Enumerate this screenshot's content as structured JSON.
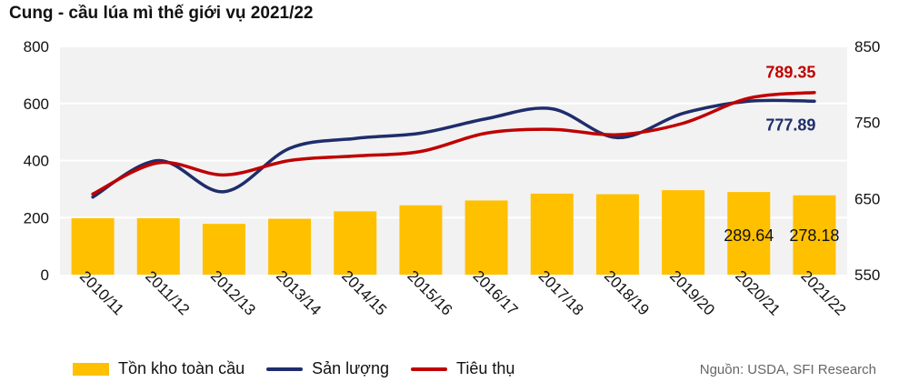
{
  "title": "Cung - cầu lúa mì thế giới vụ 2021/22",
  "source": "Nguồn: USDA, SFI Research",
  "colors": {
    "bar": "#FFC000",
    "production": "#1F2D6B",
    "consumption": "#C00000",
    "plot_bg": "#F2F2F2",
    "grid": "#FFFFFF"
  },
  "chart_data": {
    "type": "bar",
    "categories": [
      "2010/11",
      "2011/12",
      "2012/13",
      "2013/14",
      "2014/15",
      "2015/16",
      "2016/17",
      "2017/18",
      "2018/19",
      "2019/20",
      "2020/21",
      "2021/22"
    ],
    "y_left": {
      "lim": [
        0,
        800
      ],
      "ticks": [
        0,
        200,
        400,
        600,
        800
      ]
    },
    "y_right": {
      "lim": [
        550,
        850
      ],
      "ticks": [
        550,
        650,
        750,
        850
      ]
    },
    "grid": true,
    "legend_position": "bottom-left",
    "series": [
      {
        "name": "Tồn kho toàn cầu",
        "type": "bar",
        "axis": "left",
        "values": [
          198,
          198,
          178,
          196,
          222,
          243,
          260,
          284,
          282,
          296,
          289.64,
          278.18
        ]
      },
      {
        "name": "Sản lượng",
        "type": "line",
        "axis": "right",
        "values": [
          652,
          700,
          659,
          716,
          729,
          736,
          755,
          768,
          730,
          762,
          778,
          777.89
        ]
      },
      {
        "name": "Tiêu thụ",
        "type": "line",
        "axis": "right",
        "values": [
          656,
          697,
          681,
          700,
          706,
          712,
          736,
          741,
          734,
          749,
          782,
          789.35
        ]
      }
    ],
    "data_labels": [
      {
        "series": "Tồn kho toàn cầu",
        "index": 10,
        "text": "289.64"
      },
      {
        "series": "Tồn kho toàn cầu",
        "index": 11,
        "text": "278.18"
      },
      {
        "series": "Sản lượng",
        "index": 11,
        "text": "777.89"
      },
      {
        "series": "Tiêu thụ",
        "index": 11,
        "text": "789.35"
      }
    ]
  }
}
